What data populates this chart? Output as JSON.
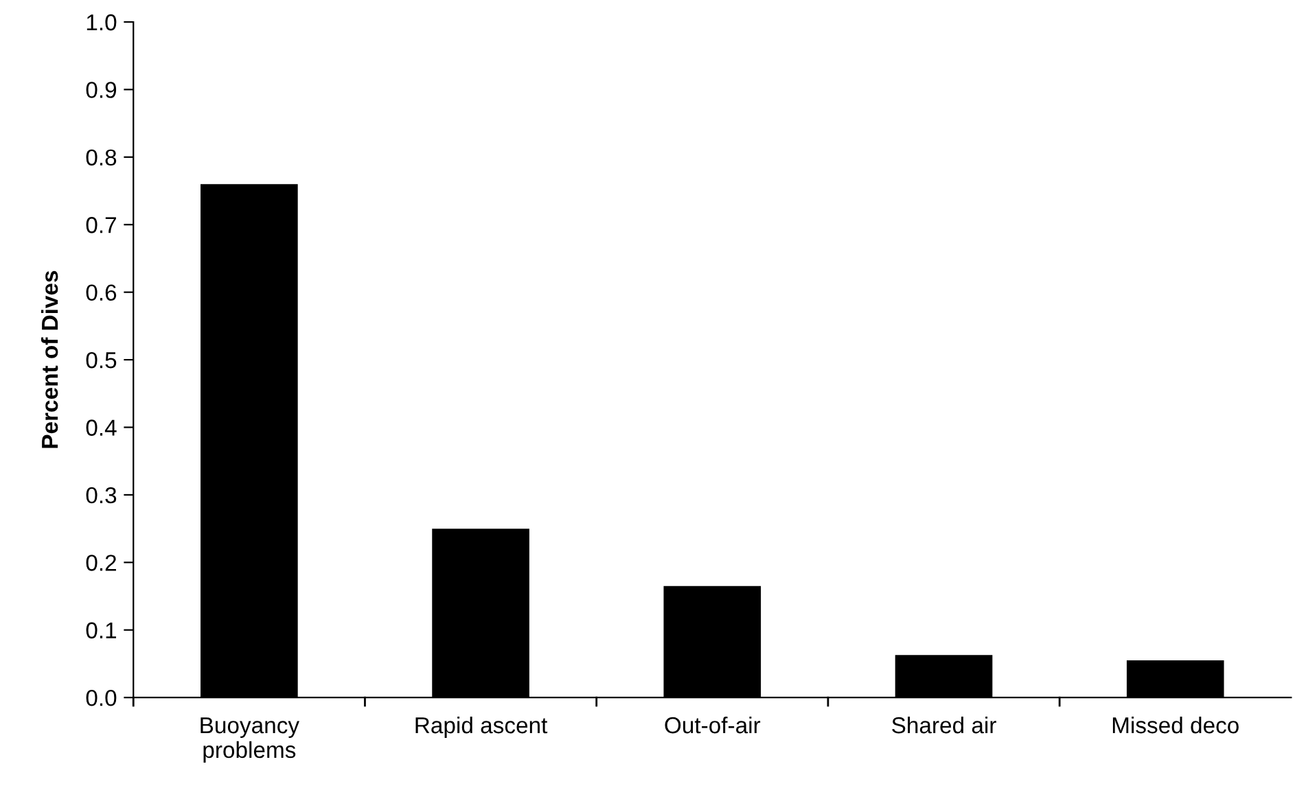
{
  "chart_data": {
    "type": "bar",
    "ylabel": "Percent of Dives",
    "categories": [
      "Buoyancy\nproblems",
      "Rapid ascent",
      "Out-of-air",
      "Shared air",
      "Missed deco"
    ],
    "values": [
      0.76,
      0.25,
      0.165,
      0.063,
      0.055
    ],
    "color": "#000000",
    "ylim": [
      0,
      1
    ],
    "yticks": [
      {
        "value": 0,
        "label": "0.0"
      },
      0.1,
      0.2,
      0.3,
      0.4,
      0.5,
      0.6,
      0.7,
      0.8,
      0.9,
      {
        "value": 1,
        "label": "1.0"
      }
    ],
    "grid": false
  }
}
